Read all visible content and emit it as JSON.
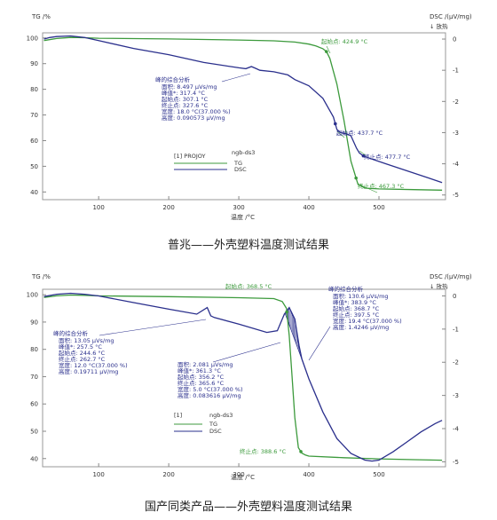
{
  "chart_data": [
    {
      "type": "line",
      "caption": "普兆——外壳塑料温度测试结果",
      "left_axis_label": "TG /%",
      "right_axis_label": "DSC /(μV/mg)",
      "right_axis_note": "↓ 放热",
      "xlabel": "温度 /°C",
      "xlim": [
        20,
        595
      ],
      "x_ticks": [
        100,
        200,
        300,
        400,
        500
      ],
      "ylim_left": [
        37,
        102
      ],
      "y_ticks_left": [
        40,
        50,
        60,
        70,
        80,
        90,
        100
      ],
      "ylim_right": [
        -5.15,
        0.2
      ],
      "y_ticks_right": [
        0,
        -1,
        -2,
        -3,
        -4,
        -5
      ],
      "series": [
        {
          "name": "TG",
          "axis": "left",
          "color": "#3c9a3c",
          "x": [
            22,
            40,
            60,
            80,
            100,
            200,
            300,
            350,
            380,
            400,
            410,
            420,
            425,
            430,
            440,
            450,
            460,
            470,
            480,
            500,
            550,
            590
          ],
          "y": [
            99.0,
            99.8,
            100.2,
            100.1,
            99.9,
            99.6,
            99.2,
            98.9,
            98.4,
            97.6,
            96.9,
            95.8,
            94.7,
            92.0,
            82.0,
            68.0,
            52.0,
            43.0,
            41.5,
            41.2,
            40.9,
            40.7
          ]
        },
        {
          "name": "DSC",
          "axis": "right",
          "color": "#2a2f8c",
          "x": [
            22,
            30,
            40,
            60,
            80,
            100,
            150,
            200,
            250,
            300,
            310,
            318,
            325,
            330,
            350,
            370,
            380,
            400,
            420,
            435,
            440,
            445,
            455,
            460,
            468,
            472,
            478,
            490,
            510,
            530,
            550,
            570,
            590
          ],
          "y": [
            0.0,
            0.05,
            0.08,
            0.1,
            0.05,
            -0.05,
            -0.3,
            -0.5,
            -0.75,
            -0.92,
            -0.95,
            -0.88,
            -0.95,
            -1.0,
            -1.05,
            -1.15,
            -1.3,
            -1.5,
            -1.9,
            -2.5,
            -2.9,
            -3.0,
            -3.05,
            -3.1,
            -3.5,
            -3.65,
            -3.75,
            -3.85,
            -4.0,
            -4.15,
            -4.3,
            -4.45,
            -4.6
          ]
        }
      ],
      "annotations": [
        {
          "text": "起始点: 424.9 °C",
          "x": 425,
          "series": "TG"
        },
        {
          "text": "终止点: 467.3 °C",
          "x": 467.3,
          "series": "TG"
        },
        {
          "text": "起始点: 437.7 °C",
          "x": 437.7,
          "series": "DSC"
        },
        {
          "text": "终止点: 477.7 °C",
          "x": 477.7,
          "series": "DSC"
        }
      ],
      "peak_box": {
        "title": "峰的综合分析",
        "lines": [
          "面积: 8.497 μVs/mg",
          "峰值*: 317.4 °C",
          "起始点: 307.1 °C",
          "终止点: 327.6 °C",
          "宽度: 18.0 °C(37.000 %)",
          "高度: 0.090573 μV/mg"
        ]
      },
      "legend": {
        "header_left": "[1] PROJOY",
        "header_right": "ngb-ds3",
        "items": [
          "TG",
          "DSC"
        ]
      }
    },
    {
      "type": "line",
      "caption": "国产同类产品——外壳塑料温度测试结果",
      "left_axis_label": "TG /%",
      "right_axis_label": "DSC /(μV/mg)",
      "right_axis_note": "↓ 放热",
      "xlabel": "温度 /°C",
      "xlim": [
        20,
        595
      ],
      "x_ticks": [
        100,
        200,
        300,
        400,
        500
      ],
      "ylim_left": [
        37,
        102
      ],
      "y_ticks_left": [
        40,
        50,
        60,
        70,
        80,
        90,
        100
      ],
      "ylim_right": [
        -5.15,
        0.2
      ],
      "y_ticks_right": [
        0,
        -1,
        -2,
        -3,
        -4,
        -5
      ],
      "series": [
        {
          "name": "TG",
          "axis": "left",
          "color": "#3c9a3c",
          "x": [
            22,
            40,
            60,
            80,
            100,
            200,
            300,
            350,
            362,
            368,
            372,
            376,
            380,
            385,
            390,
            395,
            400,
            450,
            500,
            550,
            590
          ],
          "y": [
            99.0,
            99.6,
            99.9,
            99.8,
            99.6,
            99.3,
            98.9,
            98.6,
            97.5,
            95.0,
            85.0,
            70.0,
            55.0,
            44.0,
            42.0,
            41.3,
            40.9,
            40.3,
            39.9,
            39.6,
            39.4
          ]
        },
        {
          "name": "DSC",
          "axis": "right",
          "color": "#2a2f8c",
          "x": [
            22,
            40,
            60,
            80,
            100,
            150,
            200,
            240,
            255,
            260,
            265,
            300,
            340,
            355,
            365,
            372,
            380,
            386,
            390,
            400,
            420,
            440,
            460,
            480,
            490,
            500,
            520,
            540,
            560,
            580,
            590
          ],
          "y": [
            -0.02,
            0.05,
            0.08,
            0.05,
            0.0,
            -0.2,
            -0.4,
            -0.55,
            -0.35,
            -0.6,
            -0.65,
            -0.85,
            -1.1,
            -1.05,
            -0.55,
            -0.35,
            -0.7,
            -1.5,
            -1.9,
            -2.5,
            -3.5,
            -4.3,
            -4.75,
            -4.95,
            -4.98,
            -4.95,
            -4.7,
            -4.4,
            -4.1,
            -3.85,
            -3.75
          ]
        }
      ],
      "annotations": [
        {
          "text": "起始点: 368.5 °C",
          "x": 368.5,
          "series": "TG"
        },
        {
          "text": "终止点: 388.6 °C",
          "x": 388.6,
          "series": "TG"
        }
      ],
      "peak_boxes": [
        {
          "title": "峰的综合分析",
          "lines": [
            "面积: 13.05 μVs/mg",
            "峰值*: 257.5 °C",
            "起始点: 244.6 °C",
            "终止点: 262.7 °C",
            "宽度: 12.0 °C(37.000 %)",
            "高度: 0.19711 μV/mg"
          ]
        },
        {
          "title": "",
          "lines": [
            "面积: 2.081 μVs/mg",
            "峰值*: 361.3 °C",
            "起始点: 356.2 °C",
            "终止点: 365.6 °C",
            "宽度: 5.0 °C(37.000 %)",
            "高度: 0.083616 μV/mg"
          ]
        },
        {
          "title": "峰的综合分析",
          "lines": [
            "面积: 130.6 μVs/mg",
            "峰值*: 383.9 °C",
            "起始点: 368.7 °C",
            "终止点: 397.5 °C",
            "宽度: 19.4 °C(37.000 %)",
            "高度: 1.4246 μV/mg"
          ]
        }
      ],
      "legend": {
        "header_left": "[1]",
        "header_right": "ngb-ds3",
        "items": [
          "TG",
          "DSC"
        ]
      }
    }
  ]
}
